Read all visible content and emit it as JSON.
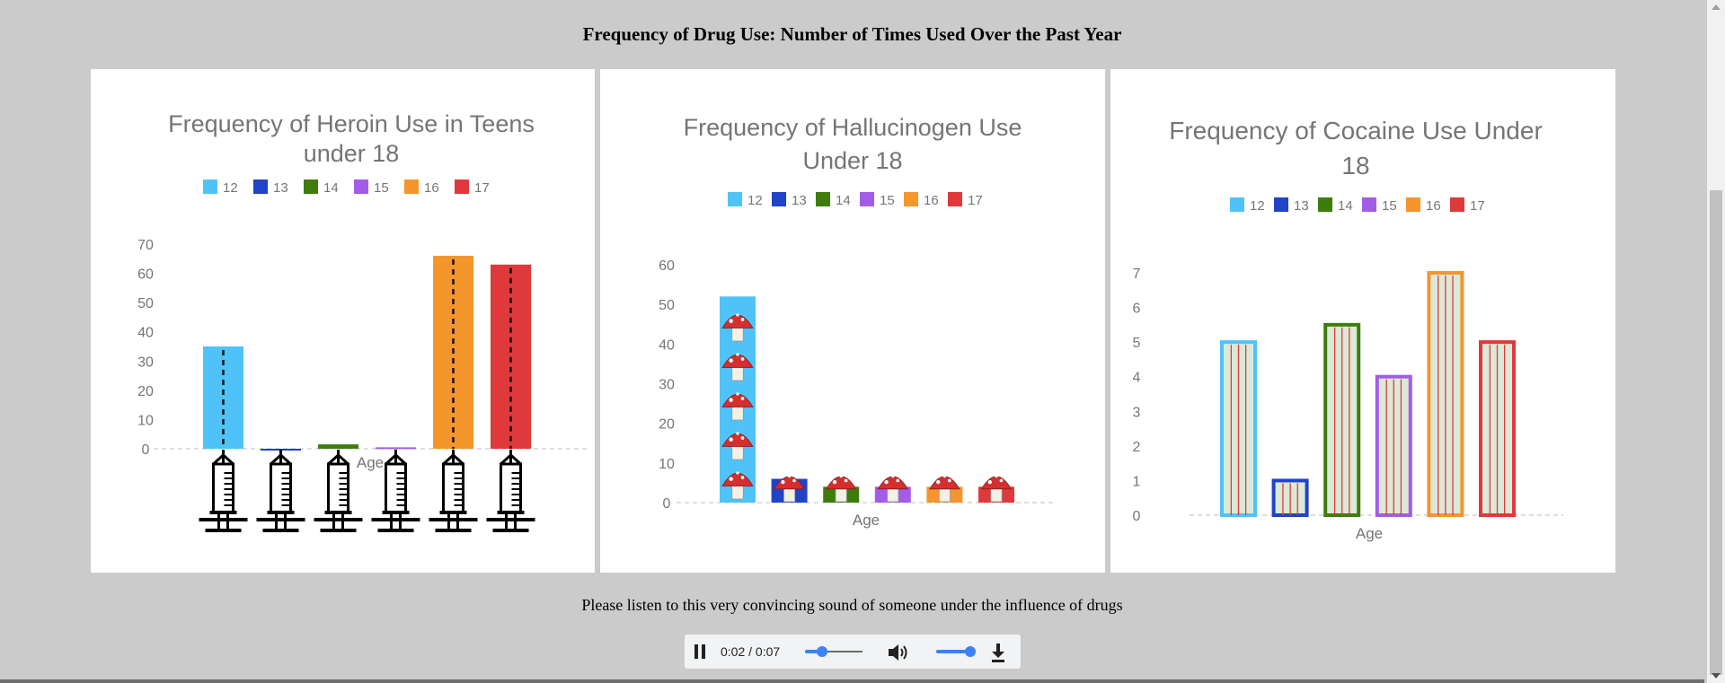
{
  "page": {
    "title": "Frequency of Drug Use: Number of Times Used Over the Past Year",
    "audio_caption": "Please listen to this very convincing sound of someone under the influence of drugs"
  },
  "legend_colors": [
    "#4fc3f7",
    "#2143c7",
    "#3e7d0c",
    "#a35ce8",
    "#f4962c",
    "#e0393b"
  ],
  "chart_data": [
    {
      "type": "bar",
      "title": "Frequency of Heroin Use in Teens under 18",
      "title_lines": [
        "Frequency of Heroin Use in Teens",
        "under 18"
      ],
      "legend": [
        "12",
        "13",
        "14",
        "15",
        "16",
        "17"
      ],
      "categories": [
        "12",
        "13",
        "14",
        "15",
        "16",
        "17"
      ],
      "values": [
        35,
        0,
        1.5,
        0.5,
        66,
        63
      ],
      "xlabel": "Age",
      "ylim": [
        0,
        70
      ],
      "yticks": [
        "0",
        "10",
        "20",
        "30",
        "40",
        "50",
        "60",
        "70"
      ],
      "decoration": "syringe-icon"
    },
    {
      "type": "bar",
      "title": "Frequency of Hallucinogen Use Under 18",
      "title_lines": [
        "Frequency of Hallucinogen Use",
        "Under 18"
      ],
      "legend": [
        "12",
        "13",
        "14",
        "15",
        "16",
        "17"
      ],
      "categories": [
        "12",
        "13",
        "14",
        "15",
        "16",
        "17"
      ],
      "values": [
        52,
        6,
        4,
        4,
        4,
        4
      ],
      "xlabel": "Age",
      "ylim": [
        0,
        60
      ],
      "yticks": [
        "0",
        "10",
        "20",
        "30",
        "40",
        "50",
        "60"
      ],
      "decoration": "mushroom-icon"
    },
    {
      "type": "bar",
      "title": "Frequency of Cocaine Use Under 18",
      "title_lines": [
        "Frequency of Cocaine Use Under",
        "18"
      ],
      "legend": [
        "12",
        "13",
        "14",
        "15",
        "16",
        "17"
      ],
      "categories": [
        "12",
        "13",
        "14",
        "15",
        "16",
        "17"
      ],
      "values": [
        5,
        1,
        5.5,
        4,
        7,
        5
      ],
      "xlabel": "Age",
      "ylim": [
        0,
        7
      ],
      "yticks": [
        "0",
        "1",
        "2",
        "3",
        "4",
        "5",
        "6",
        "7"
      ],
      "decoration": "striped-bar"
    }
  ],
  "audio": {
    "current_time": "0:02",
    "duration": "0:07",
    "time_display": "0:02 / 0:07",
    "progress": 0.3,
    "volume": 0.9,
    "pause_icon": "pause-icon",
    "volume_icon": "speaker-icon",
    "download_icon": "download-icon"
  }
}
